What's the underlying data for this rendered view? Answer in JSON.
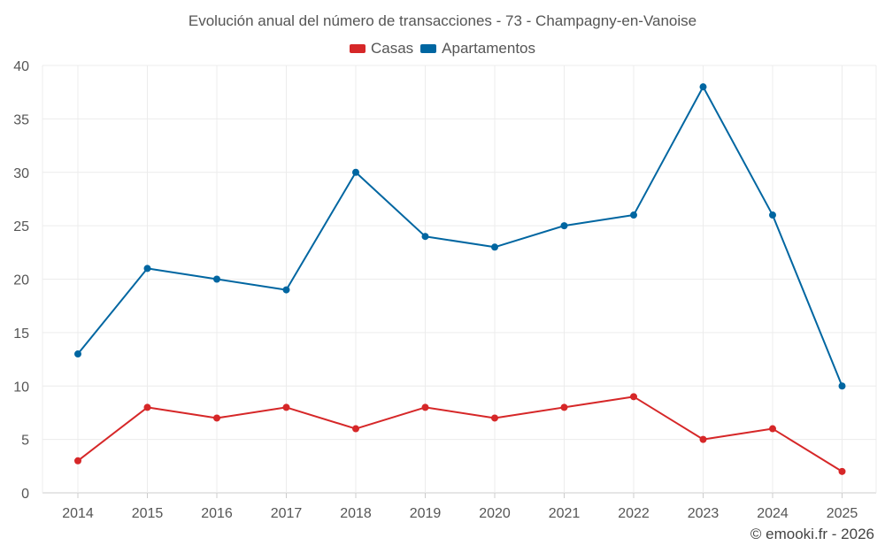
{
  "chart_data": {
    "type": "line",
    "title": "Evolución anual del número de transacciones - 73 - Champagny-en-Vanoise",
    "categories": [
      "2014",
      "2015",
      "2016",
      "2017",
      "2018",
      "2019",
      "2020",
      "2021",
      "2022",
      "2023",
      "2024",
      "2025"
    ],
    "series": [
      {
        "name": "Casas",
        "color": "#d62728",
        "values": [
          3,
          8,
          7,
          8,
          6,
          8,
          7,
          8,
          9,
          5,
          6,
          2
        ]
      },
      {
        "name": "Apartamentos",
        "color": "#0066a1",
        "values": [
          13,
          21,
          20,
          19,
          30,
          24,
          23,
          25,
          26,
          38,
          26,
          10
        ]
      }
    ],
    "ylim": [
      0,
      40
    ],
    "yticks": [
      0,
      5,
      10,
      15,
      20,
      25,
      30,
      35,
      40
    ],
    "xlabel": "",
    "ylabel": "",
    "legend_position": "top-center",
    "grid": true
  },
  "footer": {
    "copyright": "© emooki.fr - 2026"
  }
}
